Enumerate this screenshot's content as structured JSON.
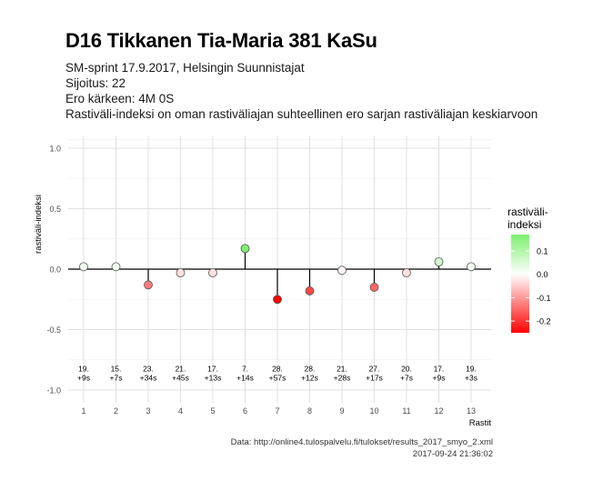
{
  "title": "D16 Tikkanen Tia-Maria 381 KaSu",
  "subtitle_lines": [
    "SM-sprint 17.9.2017, Helsingin Suunnistajat",
    "Sijoitus: 22",
    "Ero kärkeen: 4M 0S",
    "Rastiväli-indeksi on oman rastiväliajan suhteellinen ero sarjan rastiväliajan keskiarvoon"
  ],
  "caption": {
    "source": "Data: http://online4.tulospalvelu.fi/tulokset/results_2017_smyo_2.xml",
    "timestamp": "2017-09-24 21:36:02"
  },
  "chart_data": {
    "type": "scatter",
    "style": "lollipop",
    "xlabel": "Rastit",
    "ylabel": "rastiväli-indeksi",
    "ylim": [
      -1.05,
      1.1
    ],
    "y_ticks": [
      -1.0,
      -0.5,
      0.0,
      0.5,
      1.0
    ],
    "y_tick_labels": [
      "-1.0",
      "-0.5",
      "0.0",
      "0.5",
      "1.0"
    ],
    "x": [
      1,
      2,
      3,
      4,
      5,
      6,
      7,
      8,
      9,
      10,
      11,
      12,
      13
    ],
    "x_tick_labels": [
      "1",
      "2",
      "3",
      "4",
      "5",
      "6",
      "7",
      "8",
      "9",
      "10",
      "11",
      "12",
      "13"
    ],
    "values": [
      0.02,
      0.02,
      -0.13,
      -0.03,
      -0.03,
      0.17,
      -0.25,
      -0.18,
      -0.01,
      -0.15,
      -0.03,
      0.06,
      0.02
    ],
    "point_labels_rank": [
      "19.",
      "15.",
      "23.",
      "21.",
      "17.",
      "7.",
      "28.",
      "28.",
      "21.",
      "27.",
      "20.",
      "17.",
      "19."
    ],
    "point_labels_diff": [
      "+9s",
      "+7s",
      "+34s",
      "+45s",
      "+13s",
      "+14s",
      "+57s",
      "+12s",
      "+28s",
      "+17s",
      "+7s",
      "+9s",
      "+3s"
    ],
    "point_label_y": -0.92,
    "legend": {
      "title": "rastiväli-indeksi",
      "title_lines": [
        "rastiväli-",
        "indeksi"
      ],
      "placement": "right",
      "ticks": [
        0.1,
        0.0,
        -0.1,
        -0.2
      ],
      "tick_labels": [
        "0.1",
        "0.0",
        "-0.1",
        "-0.2"
      ],
      "range": [
        -0.25,
        0.17
      ]
    },
    "colors": {
      "high": "#7cf06e",
      "mid": "#ffffff",
      "low": "#ff0000",
      "grid": "#e0e0e0",
      "zero_line": "#000000"
    },
    "grid": true
  }
}
